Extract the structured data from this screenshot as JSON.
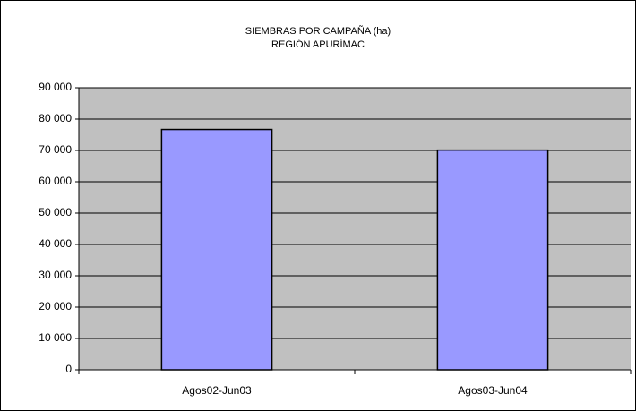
{
  "chart_data": {
    "type": "bar",
    "title": [
      "SIEMBRAS POR CAMPAÑA (ha)",
      "REGIÓN APURÍMAC"
    ],
    "categories": [
      "Agos02-Jun03",
      "Agos03-Jun04"
    ],
    "values": [
      76700,
      70100
    ],
    "color": "#9999ff",
    "ylim": [
      0,
      90000
    ],
    "yticks": [
      0,
      {
        "value": 10000,
        "label": "10 000"
      },
      {
        "value": 20000,
        "label": "20 000"
      },
      {
        "value": 30000,
        "label": "30 000"
      },
      {
        "value": 40000,
        "label": "40 000"
      },
      {
        "value": 50000,
        "label": "50 000"
      },
      {
        "value": 60000,
        "label": "60 000"
      },
      {
        "value": 70000,
        "label": "70 000"
      },
      {
        "value": 80000,
        "label": "80 000"
      },
      {
        "value": 90000,
        "label": "90 000"
      }
    ],
    "grid": true
  }
}
